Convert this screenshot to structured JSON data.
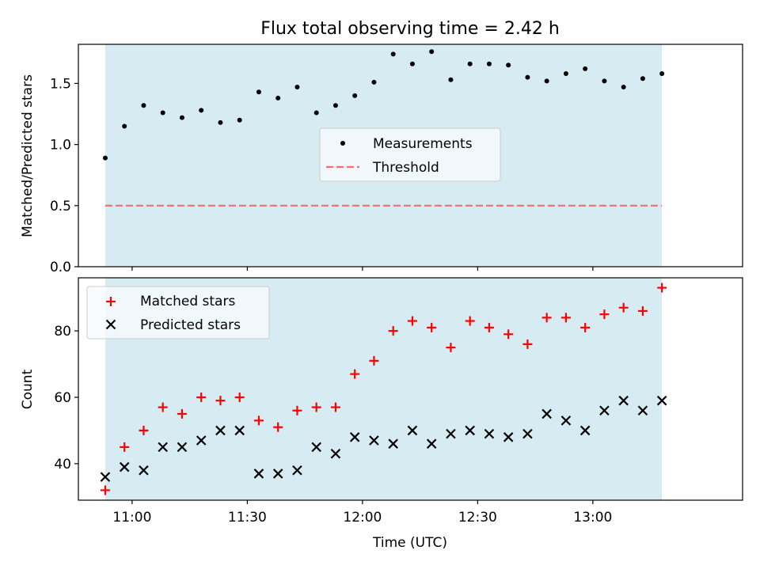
{
  "chart_data": [
    {
      "type": "scatter",
      "title": "Flux total observing time = 2.42 h",
      "ylabel": "Matched/Predicted stars",
      "xlabel": "",
      "ylim": [
        0,
        1.82
      ],
      "xlim": [
        "10:46",
        "13:39"
      ],
      "yticks": [
        "0.0",
        "0.5",
        "1.0",
        "1.5"
      ],
      "shaded_span": [
        "10:53",
        "13:18"
      ],
      "shade_color": "#add8e6",
      "legend": {
        "placement": "center",
        "entries": [
          "Measurements",
          "Threshold"
        ]
      },
      "threshold": 0.5,
      "threshold_color": "#ff6b6b",
      "marker_color": "#000000",
      "series": [
        {
          "name": "Measurements",
          "x": [
            "10:53",
            "10:58",
            "11:03",
            "11:08",
            "11:13",
            "11:18",
            "11:23",
            "11:28",
            "11:33",
            "11:38",
            "11:43",
            "11:48",
            "11:53",
            "11:58",
            "12:03",
            "12:08",
            "12:13",
            "12:18",
            "12:23",
            "12:28",
            "12:33",
            "12:38",
            "12:43",
            "12:48",
            "12:53",
            "12:58",
            "13:03",
            "13:08",
            "13:13",
            "13:18"
          ],
          "y": [
            0.89,
            1.15,
            1.32,
            1.26,
            1.22,
            1.28,
            1.18,
            1.2,
            1.43,
            1.38,
            1.47,
            1.26,
            1.32,
            1.4,
            1.51,
            1.74,
            1.66,
            1.76,
            1.53,
            1.66,
            1.66,
            1.65,
            1.55,
            1.52,
            1.58,
            1.62,
            1.52,
            1.47,
            1.54,
            1.58
          ]
        }
      ]
    },
    {
      "type": "scatter",
      "title": "",
      "xlabel": "Time (UTC)",
      "ylabel": "Count",
      "ylim": [
        29,
        96
      ],
      "xlim": [
        "10:46",
        "13:39"
      ],
      "yticks": [
        "40",
        "60",
        "80"
      ],
      "xticks": [
        "11:00",
        "11:30",
        "12:00",
        "12:30",
        "13:00"
      ],
      "shaded_span": [
        "10:53",
        "13:18"
      ],
      "shade_color": "#add8e6",
      "legend": {
        "placement": "upper-left",
        "entries": [
          "Matched stars",
          "Predicted stars"
        ]
      },
      "x": [
        "10:53",
        "10:58",
        "11:03",
        "11:08",
        "11:13",
        "11:18",
        "11:23",
        "11:28",
        "11:33",
        "11:38",
        "11:43",
        "11:48",
        "11:53",
        "11:58",
        "12:03",
        "12:08",
        "12:13",
        "12:18",
        "12:23",
        "12:28",
        "12:33",
        "12:38",
        "12:43",
        "12:48",
        "12:53",
        "12:58",
        "13:03",
        "13:08",
        "13:13",
        "13:18"
      ],
      "series": [
        {
          "name": "Matched stars",
          "marker": "+",
          "color": "#ff0000",
          "values": [
            32,
            45,
            50,
            57,
            55,
            60,
            59,
            60,
            53,
            51,
            56,
            57,
            57,
            67,
            71,
            80,
            83,
            81,
            75,
            83,
            81,
            79,
            76,
            84,
            84,
            81,
            85,
            87,
            86,
            93
          ]
        },
        {
          "name": "Predicted stars",
          "marker": "x",
          "color": "#000000",
          "values": [
            36,
            39,
            38,
            45,
            45,
            47,
            50,
            50,
            37,
            37,
            38,
            45,
            43,
            48,
            47,
            46,
            50,
            46,
            49,
            50,
            49,
            48,
            49,
            55,
            53,
            50,
            56,
            59,
            56,
            59
          ]
        }
      ]
    }
  ]
}
